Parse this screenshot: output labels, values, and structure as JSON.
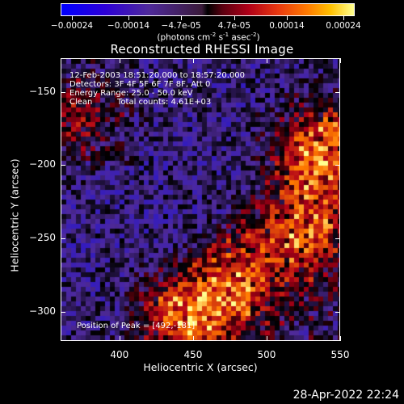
{
  "chart_data": {
    "type": "heatmap",
    "title": "Reconstructed RHESSI Image",
    "xlabel": "Heliocentric X (arcsec)",
    "ylabel": "Heliocentric Y (arcsec)",
    "xlim": [
      360,
      550
    ],
    "ylim": [
      -320,
      -127
    ],
    "xticks": [
      "400",
      "450",
      "500",
      "550"
    ],
    "xtick_values": [
      400,
      450,
      500,
      550
    ],
    "yticks": [
      "-150",
      "-200",
      "-250",
      "-300"
    ],
    "ytick_values": [
      -150,
      -200,
      -250,
      -300
    ],
    "colorbar": {
      "ticks": [
        "-0.00024",
        "-0.00014",
        "-4.7e-05",
        "4.7e-05",
        "0.00014",
        "0.00024"
      ],
      "tick_values": [
        -0.00024,
        -0.00014,
        -4.7e-05,
        4.7e-05,
        0.00014,
        0.00024
      ],
      "range": [
        -0.00026,
        0.00026
      ],
      "unit_main": "(photons cm",
      "unit_exp1": "-2",
      "unit_s": " s",
      "unit_exp2": "-1",
      "unit_asec": " asec",
      "unit_exp3": "-2",
      "unit_close": ")",
      "colors": [
        "#0000ff",
        "#4f2a9a",
        "#000000",
        "#b00018",
        "#ff7a00",
        "#ffff90"
      ]
    },
    "annotations": {
      "time_range": "12-Feb-2003 18:51:20.000 to 18:57:20.000",
      "detectors": "Detectors: 3F 4F 5F 6F 7F 8F, Att 0",
      "energy": "Energy Range: 25.0 - 50.0 keV",
      "algorithm": "Clean",
      "total_counts": "Total counts: 4.61E+03",
      "peak": "Position of Peak = [492,-181]"
    },
    "peak_position": [
      492,
      -181
    ],
    "bright_regions": [
      {
        "x": 535,
        "y": -190,
        "level": 0.00024
      },
      {
        "x": 525,
        "y": -245,
        "level": 0.0002
      },
      {
        "x": 480,
        "y": -280,
        "level": 0.00018
      },
      {
        "x": 445,
        "y": -305,
        "level": 0.00022
      },
      {
        "x": 375,
        "y": -165,
        "level": 0.00012
      }
    ]
  },
  "footer": {
    "timestamp": "28-Apr-2022 22:24"
  }
}
